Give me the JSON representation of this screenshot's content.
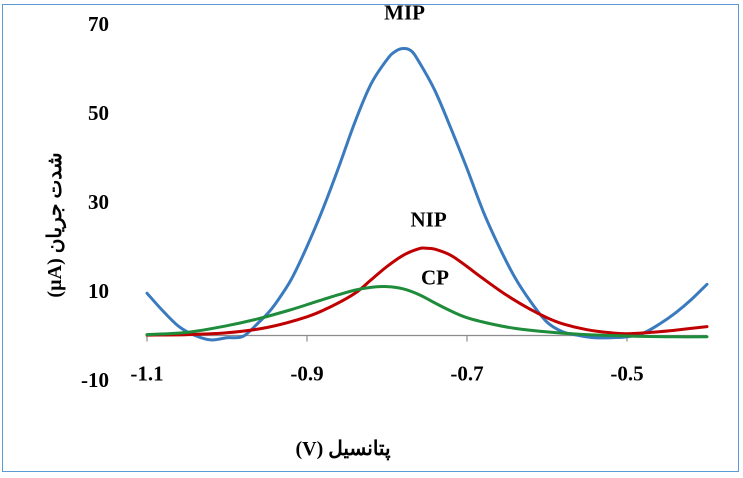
{
  "chart_data": {
    "type": "line",
    "title": "",
    "xlabel": "پتانسیل (V)",
    "ylabel": "شدت جریان (µA)",
    "xlim": [
      -1.1,
      -0.4
    ],
    "ylim": [
      -10,
      70
    ],
    "x_ticks": [
      -1.1,
      -0.9,
      -0.7,
      -0.5
    ],
    "x_tick_labels": [
      "-1.1",
      "-0.9",
      "-0.7",
      "-0.5"
    ],
    "y_ticks": [
      -10,
      10,
      30,
      50,
      70
    ],
    "y_tick_labels": [
      "-10",
      "10",
      "30",
      "50",
      "70"
    ],
    "grid": false,
    "legend": "none",
    "series": [
      {
        "name": "MIP",
        "color": "#3a7bbf",
        "x": [
          -1.1,
          -1.08,
          -1.06,
          -1.04,
          -1.02,
          -1.0,
          -0.98,
          -0.96,
          -0.95,
          -0.94,
          -0.92,
          -0.9,
          -0.88,
          -0.86,
          -0.84,
          -0.82,
          -0.8,
          -0.79,
          -0.78,
          -0.77,
          -0.76,
          -0.74,
          -0.72,
          -0.7,
          -0.68,
          -0.66,
          -0.64,
          -0.62,
          -0.6,
          -0.58,
          -0.56,
          -0.54,
          -0.52,
          -0.5,
          -0.48,
          -0.46,
          -0.44,
          -0.42,
          -0.4
        ],
        "values": [
          9.5,
          5.5,
          2.0,
          0.0,
          -1.0,
          -0.5,
          -0.2,
          3.0,
          4.8,
          7.0,
          12.5,
          20.0,
          28.5,
          38.0,
          48.0,
          56.5,
          62.0,
          63.8,
          64.5,
          64.0,
          61.5,
          55.0,
          46.5,
          37.5,
          28.0,
          20.0,
          13.0,
          7.5,
          3.0,
          0.8,
          0.0,
          -0.5,
          -0.5,
          -0.3,
          0.5,
          2.5,
          5.0,
          8.0,
          11.5
        ]
      },
      {
        "name": "NIP",
        "color": "#c00000",
        "x": [
          -1.1,
          -1.05,
          -1.0,
          -0.95,
          -0.9,
          -0.87,
          -0.84,
          -0.82,
          -0.8,
          -0.78,
          -0.76,
          -0.75,
          -0.74,
          -0.72,
          -0.7,
          -0.68,
          -0.65,
          -0.62,
          -0.6,
          -0.58,
          -0.55,
          -0.52,
          -0.5,
          -0.47,
          -0.44,
          -0.4
        ],
        "values": [
          0.1,
          0.2,
          0.6,
          1.8,
          4.2,
          6.5,
          9.5,
          12.5,
          15.5,
          18.0,
          19.5,
          19.6,
          19.4,
          18.0,
          15.5,
          12.8,
          9.0,
          5.8,
          4.0,
          2.6,
          1.3,
          0.6,
          0.4,
          0.7,
          1.2,
          2.0
        ]
      },
      {
        "name": "CP",
        "color": "#1e8c3a",
        "x": [
          -1.1,
          -1.05,
          -1.0,
          -0.96,
          -0.92,
          -0.89,
          -0.86,
          -0.84,
          -0.82,
          -0.8,
          -0.78,
          -0.76,
          -0.74,
          -0.72,
          -0.7,
          -0.67,
          -0.64,
          -0.6,
          -0.56,
          -0.52,
          -0.48,
          -0.44,
          -0.4
        ],
        "values": [
          0.2,
          0.7,
          2.2,
          3.8,
          5.8,
          7.5,
          9.2,
          10.2,
          10.8,
          11.0,
          10.5,
          9.2,
          7.3,
          5.5,
          4.0,
          2.6,
          1.6,
          0.8,
          0.3,
          0.0,
          -0.2,
          -0.3,
          -0.3
        ]
      }
    ],
    "annotations": [
      {
        "text": "MIP",
        "x": -0.778,
        "y": 71.0,
        "anchor": "middle"
      },
      {
        "text": "NIP",
        "x": -0.748,
        "y": 24.5,
        "anchor": "middle"
      },
      {
        "text": "CP",
        "x": -0.74,
        "y": 11.5,
        "anchor": "middle"
      }
    ]
  }
}
